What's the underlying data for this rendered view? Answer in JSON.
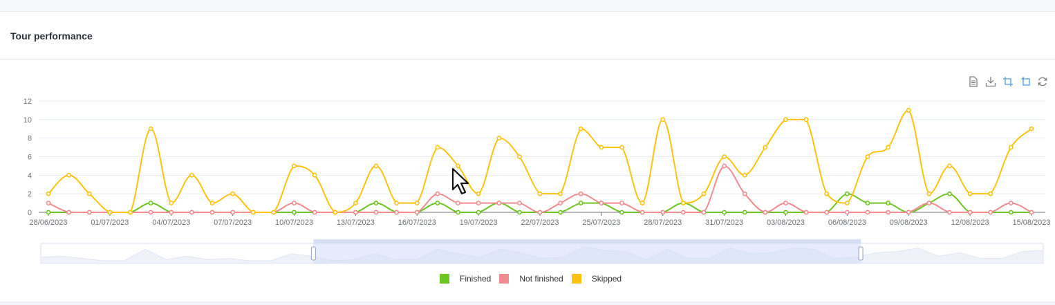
{
  "card": {
    "title": "Tour performance"
  },
  "toolbox": [
    {
      "name": "data-view-icon",
      "title": "Data view"
    },
    {
      "name": "download-icon",
      "title": "Save as image"
    },
    {
      "name": "zoom-select-icon",
      "title": "Zoom"
    },
    {
      "name": "zoom-reset-icon",
      "title": "Zoom reset"
    },
    {
      "name": "restore-icon",
      "title": "Restore"
    }
  ],
  "legend": [
    {
      "label": "Finished",
      "color": "#6cc520"
    },
    {
      "label": "Not finished",
      "color": "#f28b8f"
    },
    {
      "label": "Skipped",
      "color": "#ffc20e"
    }
  ],
  "colors": {
    "gridline": "#e6ebf8",
    "axis": "#6e7079",
    "slider_fill": "#d2ddf7",
    "slider_border": "#d6def0"
  },
  "slider": {
    "start_percent": 27.2,
    "end_percent": 81.8
  },
  "chart_data": {
    "type": "line",
    "title": "Tour performance",
    "xlabel": "",
    "ylabel": "",
    "ylim": [
      0,
      12
    ],
    "yticks": [
      0,
      2,
      4,
      6,
      8,
      10,
      12
    ],
    "grid": true,
    "legend_position": "bottom",
    "smooth": true,
    "x": [
      "28/06/2023",
      "29/06/2023",
      "30/06/2023",
      "01/07/2023",
      "02/07/2023",
      "03/07/2023",
      "04/07/2023",
      "05/07/2023",
      "06/07/2023",
      "07/07/2023",
      "08/07/2023",
      "09/07/2023",
      "10/07/2023",
      "11/07/2023",
      "12/07/2023",
      "13/07/2023",
      "14/07/2023",
      "15/07/2023",
      "16/07/2023",
      "17/07/2023",
      "18/07/2023",
      "19/07/2023",
      "20/07/2023",
      "21/07/2023",
      "22/07/2023",
      "23/07/2023",
      "24/07/2023",
      "25/07/2023",
      "26/07/2023",
      "27/07/2023",
      "28/07/2023",
      "29/07/2023",
      "30/07/2023",
      "31/07/2023",
      "01/08/2023",
      "02/08/2023",
      "03/08/2023",
      "04/08/2023",
      "05/08/2023",
      "06/08/2023",
      "07/08/2023",
      "08/08/2023",
      "09/08/2023",
      "10/08/2023",
      "11/08/2023",
      "12/08/2023",
      "13/08/2023",
      "14/08/2023",
      "15/08/2023"
    ],
    "xtick_labels": [
      "28/06/2023",
      "01/07/2023",
      "04/07/2023",
      "07/07/2023",
      "10/07/2023",
      "13/07/2023",
      "16/07/2023",
      "19/07/2023",
      "22/07/2023",
      "25/07/2023",
      "28/07/2023",
      "31/07/2023",
      "03/08/2023",
      "06/08/2023",
      "09/08/2023",
      "12/08/2023",
      "15/08/2023"
    ],
    "series": [
      {
        "name": "Finished",
        "color": "#6cc520",
        "values": [
          0,
          0,
          0,
          0,
          0,
          1,
          0,
          0,
          0,
          0,
          0,
          0,
          0,
          0,
          0,
          0,
          1,
          0,
          0,
          1,
          0,
          0,
          1,
          0,
          0,
          0,
          1,
          1,
          0,
          0,
          0,
          1,
          0,
          0,
          0,
          0,
          0,
          0,
          0,
          2,
          1,
          1,
          0,
          1,
          2,
          0,
          0,
          0,
          0
        ]
      },
      {
        "name": "Not finished",
        "color": "#f28b8f",
        "values": [
          1,
          0,
          0,
          0,
          0,
          0,
          0,
          0,
          0,
          0,
          0,
          0,
          1,
          0,
          0,
          0,
          0,
          0,
          0,
          2,
          1,
          1,
          1,
          1,
          0,
          1,
          2,
          1,
          1,
          0,
          0,
          0,
          0,
          5,
          2,
          0,
          1,
          0,
          0,
          0,
          0,
          0,
          0,
          1,
          0,
          0,
          0,
          1,
          0
        ]
      },
      {
        "name": "Skipped",
        "color": "#ffc20e",
        "values": [
          2,
          4,
          2,
          0,
          0,
          9,
          1,
          4,
          1,
          2,
          0,
          0,
          5,
          4,
          0,
          1,
          5,
          1,
          1,
          7,
          5,
          2,
          8,
          6,
          2,
          2,
          9,
          7,
          7,
          1,
          10,
          1,
          2,
          6,
          4,
          7,
          10,
          10,
          2,
          1,
          6,
          7,
          11,
          2,
          5,
          2,
          2,
          7,
          9
        ]
      }
    ]
  }
}
